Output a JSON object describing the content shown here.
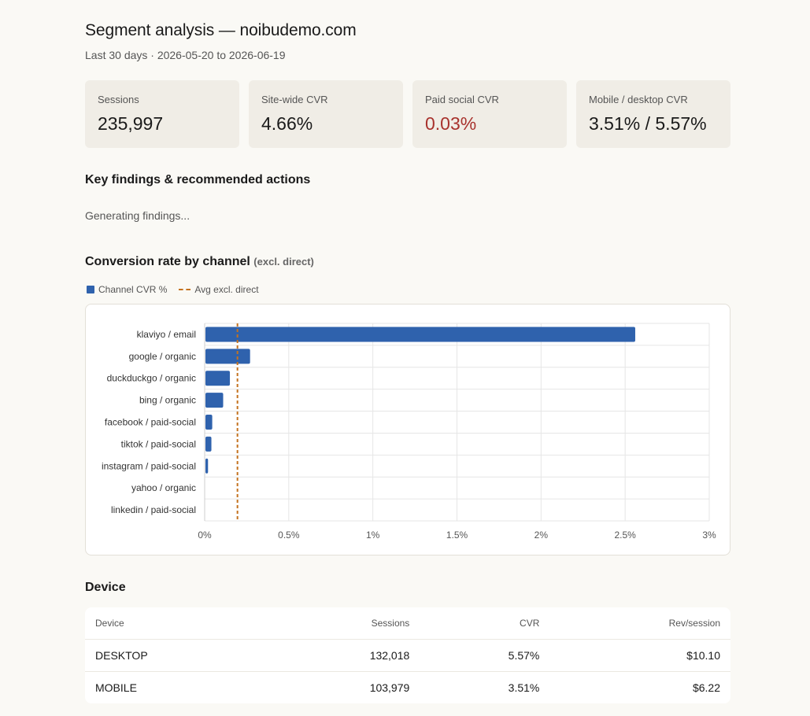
{
  "header": {
    "title": "Segment analysis — noibudemo.com",
    "subtitle": "Last 30 days · 2026-05-20 to 2026-06-19"
  },
  "kpis": [
    {
      "label": "Sessions",
      "value": "235,997",
      "status": "normal"
    },
    {
      "label": "Site-wide CVR",
      "value": "4.66%",
      "status": "normal"
    },
    {
      "label": "Paid social CVR",
      "value": "0.03%",
      "status": "bad"
    },
    {
      "label": "Mobile / desktop CVR",
      "value": "3.51% / 5.57%",
      "status": "normal"
    }
  ],
  "findings": {
    "heading": "Key findings & recommended actions",
    "status_text": "Generating findings..."
  },
  "chart_section": {
    "heading": "Conversion rate by channel",
    "heading_note": "(excl. direct)"
  },
  "colors": {
    "bar": "#2f62ad",
    "avg_line": "#c4721f",
    "bad": "#a8322d"
  },
  "chart_data": {
    "type": "bar",
    "orientation": "horizontal",
    "categories": [
      "klaviyo / email",
      "google / organic",
      "duckduckgo / organic",
      "bing / organic",
      "facebook / paid-social",
      "tiktok / paid-social",
      "instagram / paid-social",
      "yahoo / organic",
      "linkedin / paid-social"
    ],
    "series": [
      {
        "name": "Channel CVR %",
        "values": [
          2.56,
          0.27,
          0.15,
          0.11,
          0.045,
          0.04,
          0.02,
          0,
          0
        ]
      }
    ],
    "reference_line": {
      "name": "Avg excl. direct",
      "value": 0.195
    },
    "xlim": [
      0,
      3
    ],
    "xticks": [
      "0%",
      "0.5%",
      "1%",
      "1.5%",
      "2%",
      "2.5%",
      "3%"
    ],
    "legend_position": "top-left",
    "grid": true
  },
  "device": {
    "heading": "Device",
    "columns": [
      "Device",
      "Sessions",
      "CVR",
      "Rev/session"
    ],
    "rows": [
      [
        "DESKTOP",
        "132,018",
        "5.57%",
        "$10.10"
      ],
      [
        "MOBILE",
        "103,979",
        "3.51%",
        "$6.22"
      ]
    ]
  }
}
